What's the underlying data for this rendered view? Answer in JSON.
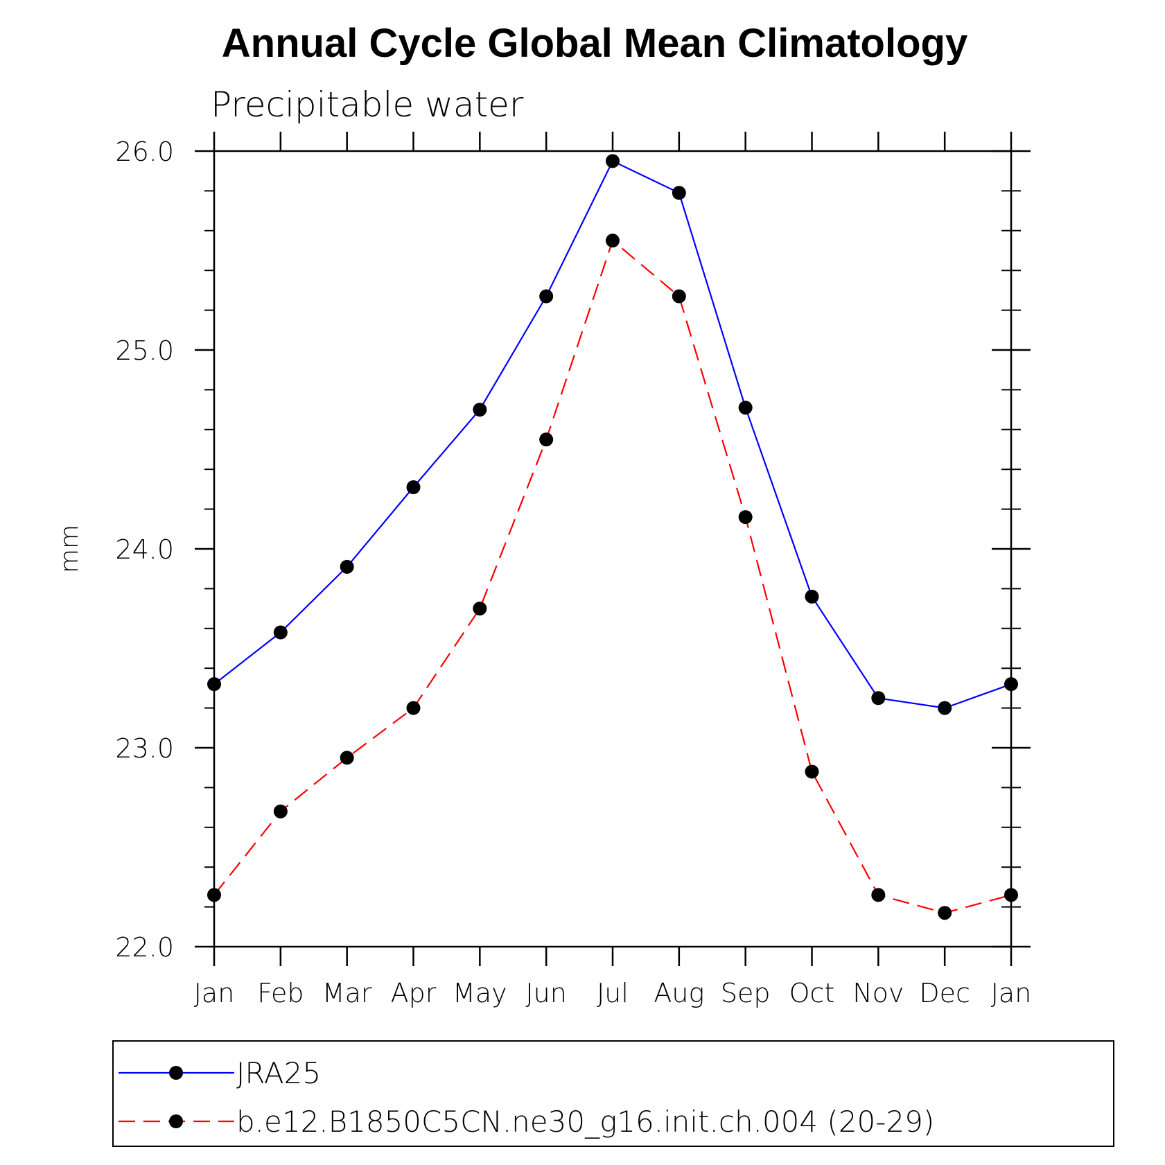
{
  "chart_data": {
    "type": "line",
    "title": "Annual Cycle Global Mean Climatology",
    "subtitle": "Precipitable water",
    "xlabel": "",
    "ylabel": "mm",
    "categories": [
      "Jan",
      "Feb",
      "Mar",
      "Apr",
      "May",
      "Jun",
      "Jul",
      "Aug",
      "Sep",
      "Oct",
      "Nov",
      "Dec",
      "Jan"
    ],
    "ylim": [
      22.0,
      26.0
    ],
    "yticks": [
      "22.0",
      "23.0",
      "24.0",
      "25.0",
      "26.0"
    ],
    "ytick_values": [
      22.0,
      23.0,
      24.0,
      25.0,
      26.0
    ],
    "y_minor_step": 0.2,
    "grid": false,
    "legend_position": "bottom",
    "series": [
      {
        "name": "JRA25",
        "color": "#0000ff",
        "style": "solid",
        "marker": "dot",
        "values": [
          23.32,
          23.58,
          23.91,
          24.31,
          24.7,
          25.27,
          25.95,
          25.79,
          24.71,
          23.76,
          23.25,
          23.2,
          23.32
        ]
      },
      {
        "name": "b.e12.B1850C5CN.ne30_g16.init.ch.004 (20-29)",
        "color": "#ff0000",
        "style": "dashed",
        "marker": "dot",
        "values": [
          22.26,
          22.68,
          22.95,
          23.2,
          23.7,
          24.55,
          25.55,
          25.27,
          24.16,
          22.88,
          22.26,
          22.17,
          22.26
        ]
      }
    ]
  }
}
